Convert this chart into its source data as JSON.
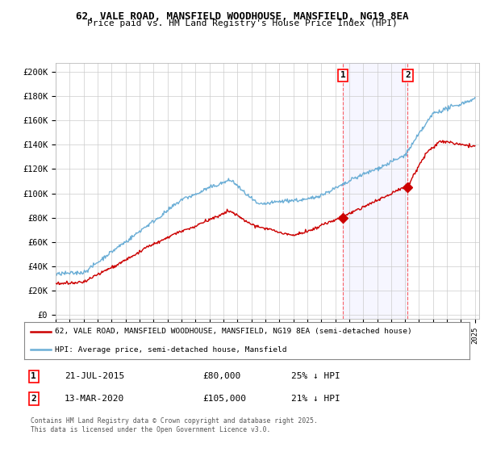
{
  "title_line1": "62, VALE ROAD, MANSFIELD WOODHOUSE, MANSFIELD, NG19 8EA",
  "title_line2": "Price paid vs. HM Land Registry's House Price Index (HPI)",
  "ylabel_ticks": [
    "£0",
    "£20K",
    "£40K",
    "£60K",
    "£80K",
    "£100K",
    "£120K",
    "£140K",
    "£160K",
    "£180K",
    "£200K"
  ],
  "ytick_values": [
    0,
    20000,
    40000,
    60000,
    80000,
    100000,
    120000,
    140000,
    160000,
    180000,
    200000
  ],
  "year_start": 1995,
  "year_end": 2025,
  "sale1_date": 2015.55,
  "sale1_price": 80000,
  "sale2_date": 2020.19,
  "sale2_price": 105000,
  "hpi_color": "#6baed6",
  "price_color": "#cc0000",
  "grid_color": "#cccccc",
  "background_color": "#ffffff",
  "legend_label1": "62, VALE ROAD, MANSFIELD WOODHOUSE, MANSFIELD, NG19 8EA (semi-detached house)",
  "legend_label2": "HPI: Average price, semi-detached house, Mansfield",
  "footnote": "Contains HM Land Registry data © Crown copyright and database right 2025.\nThis data is licensed under the Open Government Licence v3.0."
}
